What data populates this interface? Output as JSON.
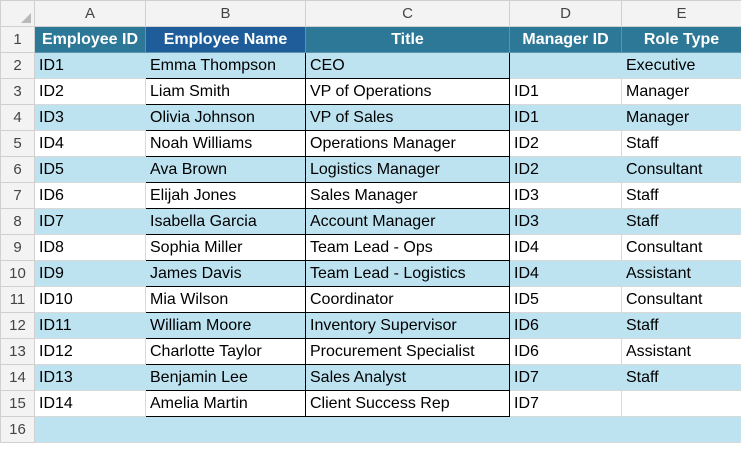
{
  "columns": [
    "A",
    "B",
    "C",
    "D",
    "E"
  ],
  "row_numbers": [
    "1",
    "2",
    "3",
    "4",
    "5",
    "6",
    "7",
    "8",
    "9",
    "10",
    "11",
    "12",
    "13",
    "14",
    "15",
    "16"
  ],
  "headers": {
    "employee_id": "Employee ID",
    "employee_name": "Employee Name",
    "title": "Title",
    "manager_id": "Manager ID",
    "role_type": "Role Type"
  },
  "rows": [
    {
      "employee_id": "ID1",
      "employee_name": "Emma Thompson",
      "title": "CEO",
      "manager_id": "",
      "role_type": "Executive"
    },
    {
      "employee_id": "ID2",
      "employee_name": "Liam Smith",
      "title": "VP of Operations",
      "manager_id": "ID1",
      "role_type": "Manager"
    },
    {
      "employee_id": "ID3",
      "employee_name": "Olivia Johnson",
      "title": "VP of Sales",
      "manager_id": "ID1",
      "role_type": "Manager"
    },
    {
      "employee_id": "ID4",
      "employee_name": "Noah Williams",
      "title": "Operations Manager",
      "manager_id": "ID2",
      "role_type": "Staff"
    },
    {
      "employee_id": "ID5",
      "employee_name": "Ava Brown",
      "title": "Logistics Manager",
      "manager_id": "ID2",
      "role_type": "Consultant"
    },
    {
      "employee_id": "ID6",
      "employee_name": "Elijah Jones",
      "title": "Sales Manager",
      "manager_id": "ID3",
      "role_type": "Staff"
    },
    {
      "employee_id": "ID7",
      "employee_name": "Isabella Garcia",
      "title": "Account Manager",
      "manager_id": "ID3",
      "role_type": "Staff"
    },
    {
      "employee_id": "ID8",
      "employee_name": "Sophia Miller",
      "title": "Team Lead - Ops",
      "manager_id": "ID4",
      "role_type": "Consultant"
    },
    {
      "employee_id": "ID9",
      "employee_name": "James Davis",
      "title": "Team Lead - Logistics",
      "manager_id": "ID4",
      "role_type": "Assistant"
    },
    {
      "employee_id": "ID10",
      "employee_name": "Mia Wilson",
      "title": "Coordinator",
      "manager_id": "ID5",
      "role_type": "Consultant"
    },
    {
      "employee_id": "ID11",
      "employee_name": "William Moore",
      "title": "Inventory Supervisor",
      "manager_id": "ID6",
      "role_type": "Staff"
    },
    {
      "employee_id": "ID12",
      "employee_name": "Charlotte Taylor",
      "title": "Procurement Specialist",
      "manager_id": "ID6",
      "role_type": "Assistant"
    },
    {
      "employee_id": "ID13",
      "employee_name": "Benjamin Lee",
      "title": "Sales Analyst",
      "manager_id": "ID7",
      "role_type": "Staff"
    },
    {
      "employee_id": "ID14",
      "employee_name": "Amelia Martin",
      "title": "Client Success Rep",
      "manager_id": "ID7",
      "role_type": ""
    }
  ],
  "colors": {
    "header_fill": "#2e7897",
    "selected_header_fill": "#1f5d9a",
    "band_fill": "#bde3f1",
    "header_text": "#ffffff"
  }
}
